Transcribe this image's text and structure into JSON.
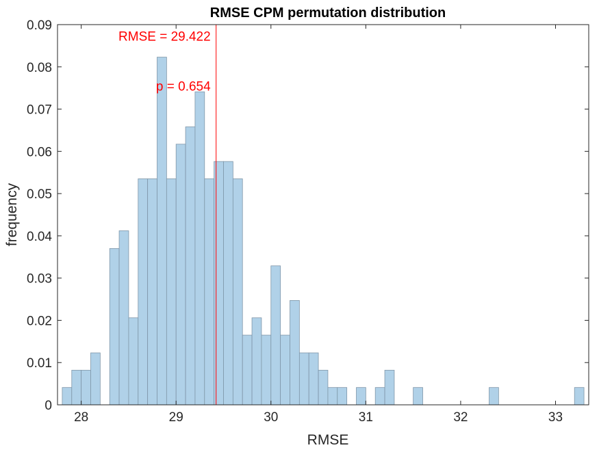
{
  "chart_data": {
    "type": "bar",
    "title": "RMSE CPM permutation distribution",
    "xlabel": "RMSE",
    "ylabel": "frequency",
    "xlim": [
      27.75,
      33.35
    ],
    "ylim": [
      0,
      0.09
    ],
    "xticks": [
      28,
      29,
      30,
      31,
      32,
      33
    ],
    "yticks": [
      0,
      0.01,
      0.02,
      0.03,
      0.04,
      0.05,
      0.06,
      0.07,
      0.08,
      0.09
    ],
    "grid": false,
    "bin_width": 0.1,
    "bins": [
      {
        "x0": 27.8,
        "value": 0.0041
      },
      {
        "x0": 27.9,
        "value": 0.0082
      },
      {
        "x0": 28.0,
        "value": 0.0082
      },
      {
        "x0": 28.1,
        "value": 0.0123
      },
      {
        "x0": 28.3,
        "value": 0.037
      },
      {
        "x0": 28.4,
        "value": 0.0412
      },
      {
        "x0": 28.5,
        "value": 0.0206
      },
      {
        "x0": 28.6,
        "value": 0.0535
      },
      {
        "x0": 28.7,
        "value": 0.0535
      },
      {
        "x0": 28.8,
        "value": 0.0823
      },
      {
        "x0": 28.9,
        "value": 0.0535
      },
      {
        "x0": 29.0,
        "value": 0.0617
      },
      {
        "x0": 29.1,
        "value": 0.0658
      },
      {
        "x0": 29.2,
        "value": 0.0741
      },
      {
        "x0": 29.3,
        "value": 0.0535
      },
      {
        "x0": 29.4,
        "value": 0.0576
      },
      {
        "x0": 29.5,
        "value": 0.0576
      },
      {
        "x0": 29.6,
        "value": 0.0535
      },
      {
        "x0": 29.7,
        "value": 0.0165
      },
      {
        "x0": 29.8,
        "value": 0.0206
      },
      {
        "x0": 29.9,
        "value": 0.0165
      },
      {
        "x0": 30.0,
        "value": 0.0329
      },
      {
        "x0": 30.1,
        "value": 0.0165
      },
      {
        "x0": 30.2,
        "value": 0.0247
      },
      {
        "x0": 30.3,
        "value": 0.0123
      },
      {
        "x0": 30.4,
        "value": 0.0123
      },
      {
        "x0": 30.5,
        "value": 0.0082
      },
      {
        "x0": 30.6,
        "value": 0.0041
      },
      {
        "x0": 30.7,
        "value": 0.0041
      },
      {
        "x0": 30.9,
        "value": 0.0041
      },
      {
        "x0": 31.1,
        "value": 0.0041
      },
      {
        "x0": 31.2,
        "value": 0.0082
      },
      {
        "x0": 31.5,
        "value": 0.0041
      },
      {
        "x0": 32.3,
        "value": 0.0041
      },
      {
        "x0": 33.2,
        "value": 0.0041
      }
    ],
    "reference_line": {
      "x": 29.422,
      "label": "RMSE = 29.422",
      "p_label": "p = 0.654"
    },
    "colors": {
      "bar_fill": "#b0d1e8",
      "bar_edge": "#7f96a8",
      "reference": "#ff0000",
      "axis": "#262626"
    }
  }
}
